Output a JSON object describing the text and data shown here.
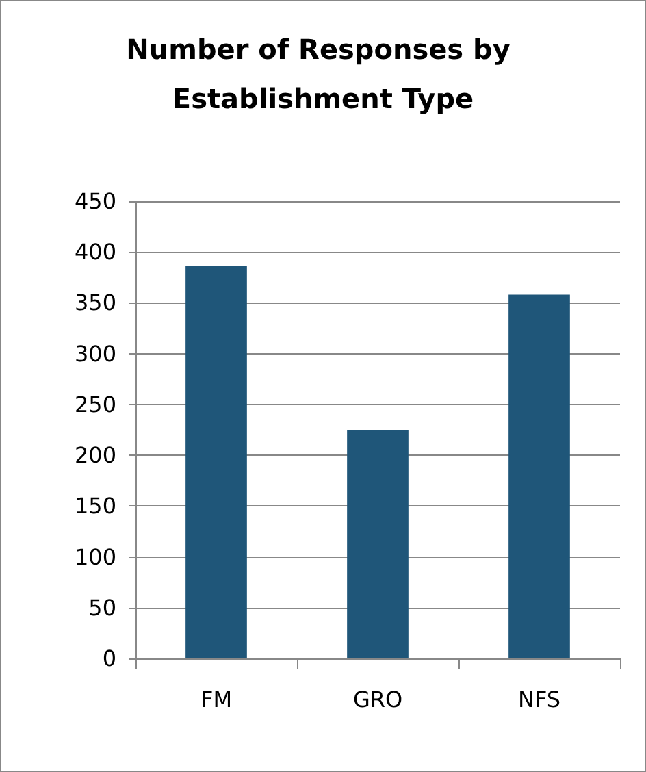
{
  "chart_data": {
    "type": "bar",
    "title": "Number of Responses by Establishment Type",
    "categories": [
      "FM",
      "GRO",
      "NFS"
    ],
    "values": [
      386,
      225,
      358
    ],
    "color": "#1f5679",
    "ylim": [
      0,
      450
    ],
    "yticks": [
      0,
      50,
      100,
      150,
      200,
      250,
      300,
      350,
      400,
      450
    ],
    "grid": "y"
  }
}
